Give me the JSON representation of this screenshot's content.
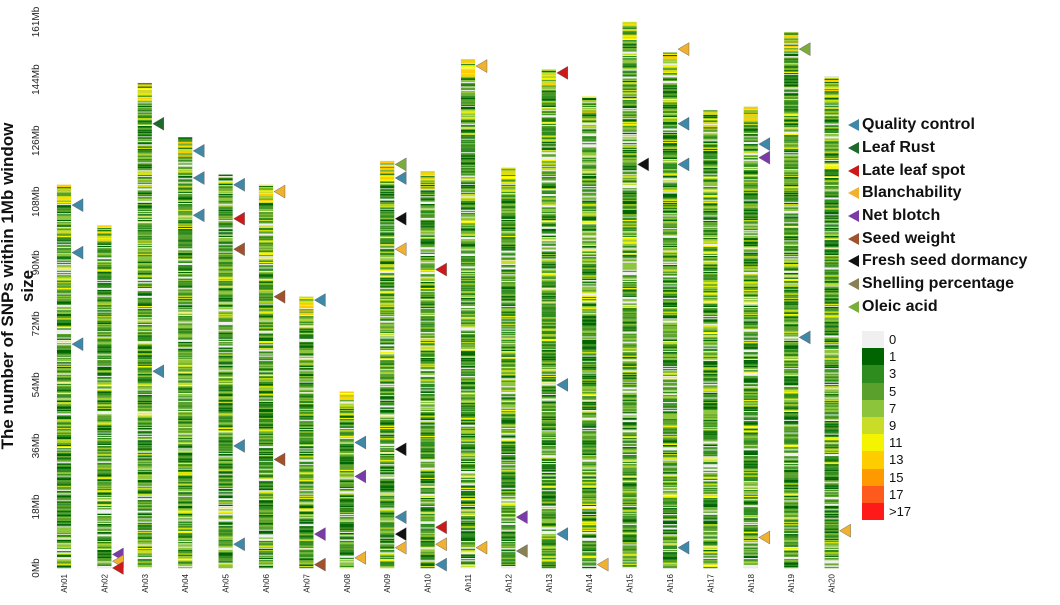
{
  "chart_data": {
    "type": "heatmap",
    "title": "",
    "ylabel": "The number of SNPs within 1Mb window size",
    "ylim": [
      0,
      161
    ],
    "y_ticks": [
      "0Mb",
      "18Mb",
      "36Mb",
      "54Mb",
      "72Mb",
      "90Mb",
      "108Mb",
      "126Mb",
      "144Mb",
      "161Mb"
    ],
    "y_tick_values": [
      0,
      18,
      36,
      54,
      72,
      90,
      108,
      126,
      144,
      161
    ],
    "chromosomes": [
      {
        "name": "Ah01",
        "length": 113
      },
      {
        "name": "Ah02",
        "length": 101
      },
      {
        "name": "Ah03",
        "length": 143
      },
      {
        "name": "Ah04",
        "length": 127
      },
      {
        "name": "Ah05",
        "length": 116
      },
      {
        "name": "Ah06",
        "length": 113
      },
      {
        "name": "Ah07",
        "length": 80
      },
      {
        "name": "Ah08",
        "length": 52
      },
      {
        "name": "Ah09",
        "length": 120
      },
      {
        "name": "Ah10",
        "length": 117
      },
      {
        "name": "Ah11",
        "length": 150
      },
      {
        "name": "Ah12",
        "length": 118
      },
      {
        "name": "Ah13",
        "length": 147
      },
      {
        "name": "Ah14",
        "length": 139
      },
      {
        "name": "Ah15",
        "length": 161
      },
      {
        "name": "Ah16",
        "length": 152
      },
      {
        "name": "Ah17",
        "length": 135
      },
      {
        "name": "Ah18",
        "length": 136
      },
      {
        "name": "Ah19",
        "length": 158
      },
      {
        "name": "Ah20",
        "length": 145
      }
    ],
    "density_scale": {
      "labels": [
        "0",
        "1",
        "3",
        "5",
        "7",
        "9",
        "11",
        "13",
        "15",
        "17",
        ">17"
      ],
      "colors": [
        "#f0f0f0",
        "#006400",
        "#2e8b1e",
        "#5aa02c",
        "#8cc43c",
        "#c8dc28",
        "#f4f400",
        "#ffcc00",
        "#ff9900",
        "#ff5a1e",
        "#ff1a1a"
      ]
    },
    "traits": [
      {
        "name": "Quality control",
        "color": "#3f88a8"
      },
      {
        "name": "Leaf Rust",
        "color": "#1e6a2a"
      },
      {
        "name": "Late leaf spot",
        "color": "#cc1a1a"
      },
      {
        "name": "Blanchability",
        "color": "#f0b030"
      },
      {
        "name": "Net blotch",
        "color": "#7a3aa8"
      },
      {
        "name": "Seed weight",
        "color": "#a0522d"
      },
      {
        "name": "Fresh seed dormancy",
        "color": "#111111"
      },
      {
        "name": "Shelling percentage",
        "color": "#8a8055"
      },
      {
        "name": "Oleic acid",
        "color": "#7aad3a"
      }
    ],
    "markers": [
      {
        "chr": 0,
        "pos": 107,
        "trait": 0
      },
      {
        "chr": 0,
        "pos": 93,
        "trait": 0
      },
      {
        "chr": 0,
        "pos": 66,
        "trait": 0
      },
      {
        "chr": 1,
        "pos": 4,
        "trait": 4
      },
      {
        "chr": 1,
        "pos": 2,
        "trait": 3
      },
      {
        "chr": 1,
        "pos": 0,
        "trait": 2
      },
      {
        "chr": 2,
        "pos": 131,
        "trait": 1
      },
      {
        "chr": 2,
        "pos": 58,
        "trait": 0
      },
      {
        "chr": 3,
        "pos": 123,
        "trait": 0
      },
      {
        "chr": 3,
        "pos": 115,
        "trait": 0
      },
      {
        "chr": 3,
        "pos": 104,
        "trait": 0
      },
      {
        "chr": 4,
        "pos": 113,
        "trait": 0
      },
      {
        "chr": 4,
        "pos": 103,
        "trait": 2
      },
      {
        "chr": 4,
        "pos": 94,
        "trait": 5
      },
      {
        "chr": 4,
        "pos": 36,
        "trait": 0
      },
      {
        "chr": 4,
        "pos": 7,
        "trait": 0
      },
      {
        "chr": 5,
        "pos": 111,
        "trait": 3
      },
      {
        "chr": 5,
        "pos": 80,
        "trait": 5
      },
      {
        "chr": 5,
        "pos": 32,
        "trait": 5
      },
      {
        "chr": 6,
        "pos": 79,
        "trait": 0
      },
      {
        "chr": 6,
        "pos": 10,
        "trait": 4
      },
      {
        "chr": 6,
        "pos": 1,
        "trait": 5
      },
      {
        "chr": 7,
        "pos": 37,
        "trait": 0
      },
      {
        "chr": 7,
        "pos": 27,
        "trait": 4
      },
      {
        "chr": 7,
        "pos": 3,
        "trait": 3
      },
      {
        "chr": 8,
        "pos": 119,
        "trait": 8
      },
      {
        "chr": 8,
        "pos": 115,
        "trait": 0
      },
      {
        "chr": 8,
        "pos": 103,
        "trait": 6
      },
      {
        "chr": 8,
        "pos": 94,
        "trait": 3
      },
      {
        "chr": 8,
        "pos": 35,
        "trait": 6
      },
      {
        "chr": 8,
        "pos": 15,
        "trait": 0
      },
      {
        "chr": 8,
        "pos": 10,
        "trait": 6
      },
      {
        "chr": 8,
        "pos": 6,
        "trait": 3
      },
      {
        "chr": 9,
        "pos": 88,
        "trait": 2
      },
      {
        "chr": 9,
        "pos": 12,
        "trait": 2
      },
      {
        "chr": 9,
        "pos": 7,
        "trait": 3
      },
      {
        "chr": 9,
        "pos": 1,
        "trait": 0
      },
      {
        "chr": 10,
        "pos": 148,
        "trait": 3
      },
      {
        "chr": 10,
        "pos": 6,
        "trait": 3
      },
      {
        "chr": 11,
        "pos": 15,
        "trait": 4
      },
      {
        "chr": 11,
        "pos": 5,
        "trait": 7
      },
      {
        "chr": 12,
        "pos": 146,
        "trait": 2
      },
      {
        "chr": 12,
        "pos": 54,
        "trait": 0
      },
      {
        "chr": 12,
        "pos": 10,
        "trait": 0
      },
      {
        "chr": 13,
        "pos": 1,
        "trait": 3
      },
      {
        "chr": 14,
        "pos": 119,
        "trait": 6
      },
      {
        "chr": 15,
        "pos": 153,
        "trait": 3
      },
      {
        "chr": 15,
        "pos": 131,
        "trait": 0
      },
      {
        "chr": 15,
        "pos": 119,
        "trait": 0
      },
      {
        "chr": 15,
        "pos": 6,
        "trait": 0
      },
      {
        "chr": 17,
        "pos": 125,
        "trait": 0
      },
      {
        "chr": 17,
        "pos": 121,
        "trait": 4
      },
      {
        "chr": 17,
        "pos": 9,
        "trait": 3
      },
      {
        "chr": 18,
        "pos": 153,
        "trait": 8
      },
      {
        "chr": 18,
        "pos": 68,
        "trait": 0
      },
      {
        "chr": 19,
        "pos": 11,
        "trait": 3
      }
    ],
    "grid": false,
    "legend_position": "right"
  }
}
